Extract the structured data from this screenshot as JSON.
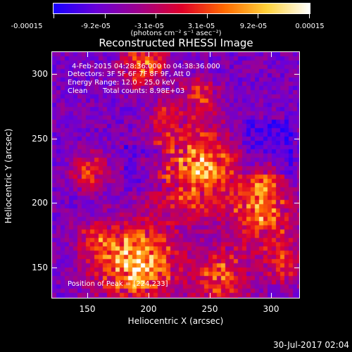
{
  "colorbar": {
    "ticks": [
      "-0.00015",
      "-9.2e-05",
      "-3.1e-05",
      "3.1e-05",
      "9.2e-05",
      "0.00015"
    ],
    "units": "(photons cm⁻² s⁻¹ asec⁻²)",
    "colors": [
      "#1a00ff",
      "#6a00d8",
      "#a0008c",
      "#e0002a",
      "#ff6a00",
      "#ffd23a",
      "#ffffff"
    ]
  },
  "title": "Reconstructed RHESSI Image",
  "info": {
    "time_range": "4-Feb-2015 04:28:36.000 to 04:38:36.000",
    "detectors": "Detectors: 3F 5F 6F 7F 8F 9F, Att 0",
    "energy_range": "Energy Range: 12.0 - 25.0 keV",
    "clean": "Clean",
    "total_counts": "Total counts: 8.98E+03",
    "peak": "Position of Peak = [224,233]"
  },
  "axes": {
    "xlabel": "Heliocentric X (arcsec)",
    "ylabel": "Heliocentric Y (arcsec)",
    "xticks": [
      "150",
      "200",
      "250",
      "300"
    ],
    "yticks": [
      "300",
      "250",
      "200",
      "150"
    ]
  },
  "footer_date": "30-Jul-2017 02:04"
}
